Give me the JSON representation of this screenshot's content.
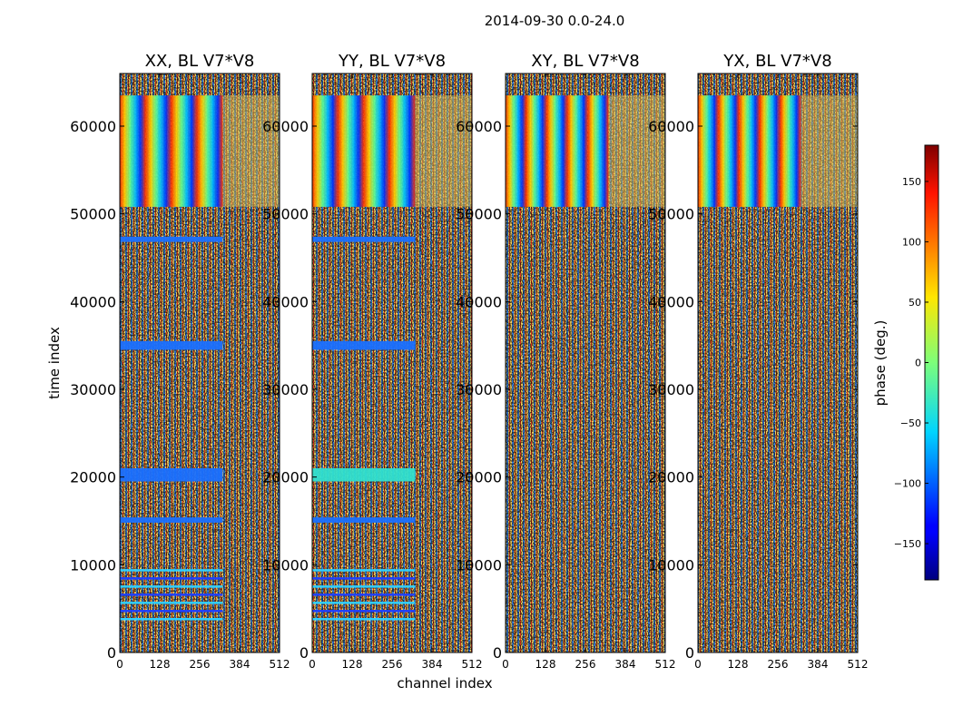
{
  "chart_data": {
    "type": "heatmap",
    "suptitle": "2014-09-30 0.0-24.0",
    "xlabel": "channel index",
    "ylabel": "time index",
    "xlim": [
      0,
      512
    ],
    "ylim": [
      0,
      66000
    ],
    "xticks": [
      0,
      128,
      256,
      384,
      512
    ],
    "yticks": [
      0,
      10000,
      20000,
      30000,
      40000,
      50000,
      60000
    ],
    "panels": [
      {
        "title": "XX, BL V7*V8",
        "pol": "XX"
      },
      {
        "title": "YY, BL V7*V8",
        "pol": "YY"
      },
      {
        "title": "XY, BL V7*V8",
        "pol": "XY"
      },
      {
        "title": "YX, BL V7*V8",
        "pol": "YX"
      }
    ],
    "colorbar": {
      "label": "phase (deg.)",
      "range": [
        -180,
        180
      ],
      "ticks": [
        150,
        100,
        50,
        0,
        -50,
        -100,
        -150
      ],
      "tick_labels": [
        "150",
        "100",
        "50",
        "0",
        "−50",
        "−100",
        "−150"
      ],
      "colormap": "jet"
    },
    "features": [
      {
        "time_range": [
          50800,
          63500
        ],
        "channel_range": [
          0,
          330
        ],
        "description": "coherent phase wrap fringes",
        "panels": [
          "XX",
          "YY",
          "XY",
          "YX"
        ]
      },
      {
        "time_range": [
          34500,
          35500
        ],
        "channel_range": [
          0,
          330
        ],
        "description": "coherent stripe",
        "panels": [
          "XX",
          "YY"
        ]
      },
      {
        "time_range": [
          19500,
          21000
        ],
        "channel_range": [
          0,
          330
        ],
        "description": "coherent stripe",
        "panels": [
          "XX",
          "YY"
        ]
      },
      {
        "time_range": [
          14800,
          15400
        ],
        "channel_range": [
          0,
          330
        ],
        "description": "coherent stripe",
        "panels": [
          "XX",
          "YY"
        ]
      },
      {
        "time_range": [
          46800,
          47400
        ],
        "channel_range": [
          0,
          330
        ],
        "description": "coherent stripe",
        "panels": [
          "XX",
          "YY"
        ]
      },
      {
        "time_range": [
          3000,
          9500
        ],
        "channel_range": [
          0,
          330
        ],
        "description": "horizontal banding",
        "panels": [
          "XX",
          "YY"
        ]
      }
    ]
  }
}
